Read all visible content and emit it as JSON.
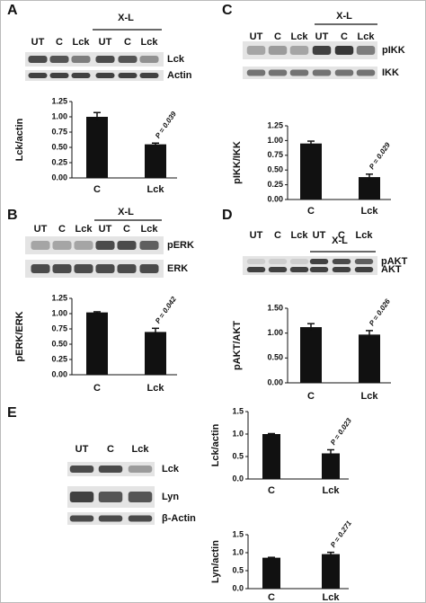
{
  "panels": [
    {
      "letter": "A",
      "group_label": "X-L",
      "lanes": [
        "UT",
        "C",
        "Lck",
        "UT",
        "C",
        "Lck"
      ],
      "blots": [
        "Lck",
        "Actin"
      ]
    },
    {
      "letter": "C",
      "group_label": "X-L",
      "lanes": [
        "UT",
        "C",
        "Lck",
        "UT",
        "C",
        "Lck"
      ],
      "blots": [
        "pIKK",
        "IKK"
      ]
    },
    {
      "letter": "B",
      "group_label": "X-L",
      "lanes": [
        "UT",
        "C",
        "Lck",
        "UT",
        "C",
        "Lck"
      ],
      "blots": [
        "pERK",
        "ERK"
      ]
    },
    {
      "letter": "D",
      "group_label": "X-L",
      "lanes": [
        "UT",
        "C",
        "Lck",
        "UT",
        "C",
        "Lck"
      ],
      "blots": [
        "pAKT",
        "AKT"
      ]
    },
    {
      "letter": "E",
      "lanes": [
        "UT",
        "C",
        "Lck"
      ],
      "blots": [
        "Lck",
        "Lyn",
        "β-Actin"
      ]
    }
  ],
  "chart_data": [
    {
      "type": "bar",
      "y_label": "Lck/actin",
      "categories": [
        "C",
        "Lck"
      ],
      "values": [
        1.0,
        0.55
      ],
      "errors": [
        0.07,
        0.02
      ],
      "ylim": [
        0,
        1.25
      ],
      "yticks": [
        {
          "value": 0,
          "label": "0.00"
        },
        {
          "value": 0.25,
          "label": "0.25"
        },
        {
          "value": 0.5,
          "label": "0.50"
        },
        {
          "value": 0.75,
          "label": "0.75"
        },
        {
          "value": 1,
          "label": "1.00"
        },
        {
          "value": 1.25,
          "label": "1.25"
        }
      ],
      "annotation": "P = 0.039"
    },
    {
      "type": "bar",
      "y_label": "pIKK/IKK",
      "categories": [
        "C",
        "Lck"
      ],
      "values": [
        0.95,
        0.38
      ],
      "errors": [
        0.04,
        0.05
      ],
      "ylim": [
        0,
        1.25
      ],
      "yticks": [
        {
          "value": 0,
          "label": "0.00"
        },
        {
          "value": 0.25,
          "label": "0.25"
        },
        {
          "value": 0.5,
          "label": "0.50"
        },
        {
          "value": 0.75,
          "label": "0.75"
        },
        {
          "value": 1,
          "label": "1.00"
        },
        {
          "value": 1.25,
          "label": "1.25"
        }
      ],
      "annotation": "P = 0.029"
    },
    {
      "type": "bar",
      "y_label": "pERK/ERK",
      "categories": [
        "C",
        "Lck"
      ],
      "values": [
        1.02,
        0.7
      ],
      "errors": [
        0.01,
        0.06
      ],
      "ylim": [
        0,
        1.25
      ],
      "yticks": [
        {
          "value": 0,
          "label": "0.00"
        },
        {
          "value": 0.25,
          "label": "0.25"
        },
        {
          "value": 0.5,
          "label": "0.50"
        },
        {
          "value": 0.75,
          "label": "0.75"
        },
        {
          "value": 1,
          "label": "1.00"
        },
        {
          "value": 1.25,
          "label": "1.25"
        }
      ],
      "annotation": "P = 0.042"
    },
    {
      "type": "bar",
      "y_label": "pAKT/AKT",
      "categories": [
        "C",
        "Lck"
      ],
      "values": [
        1.12,
        0.97
      ],
      "errors": [
        0.07,
        0.08
      ],
      "ylim": [
        0,
        1.5
      ],
      "yticks": [
        {
          "value": 0,
          "label": "0.00"
        },
        {
          "value": 0.5,
          "label": "0.50"
        },
        {
          "value": 1,
          "label": "1.00"
        },
        {
          "value": 1.5,
          "label": "1.50"
        }
      ],
      "annotation": "P = 0.026"
    },
    {
      "type": "bar",
      "y_label": "Lck/actin",
      "categories": [
        "C",
        "Lck"
      ],
      "values": [
        1.0,
        0.57
      ],
      "errors": [
        0.01,
        0.08
      ],
      "ylim": [
        0,
        1.5
      ],
      "yticks": [
        {
          "value": 0,
          "label": "0.0"
        },
        {
          "value": 0.5,
          "label": "0.5"
        },
        {
          "value": 1,
          "label": "1.0"
        },
        {
          "value": 1.5,
          "label": "1.5"
        }
      ],
      "annotation": "P = 0.023"
    },
    {
      "type": "bar",
      "y_label": "Lyn/actin",
      "categories": [
        "C",
        "Lck"
      ],
      "values": [
        0.86,
        0.96
      ],
      "errors": [
        0.01,
        0.05
      ],
      "ylim": [
        0,
        1.5
      ],
      "yticks": [
        {
          "value": 0,
          "label": "0.0"
        },
        {
          "value": 0.5,
          "label": "0.5"
        },
        {
          "value": 1,
          "label": "1.0"
        },
        {
          "value": 1.5,
          "label": "1.5"
        }
      ],
      "annotation": "P = 0.271"
    }
  ]
}
